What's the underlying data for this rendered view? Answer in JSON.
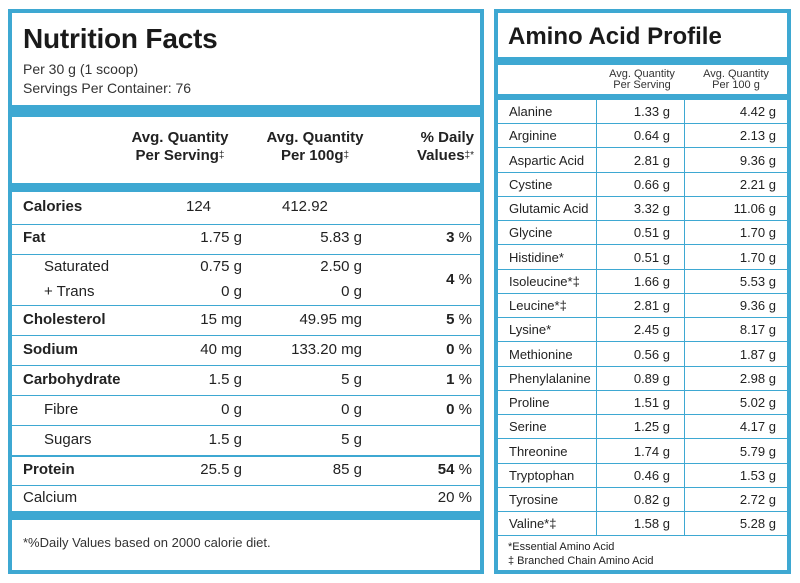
{
  "nutrition": {
    "title": "Nutrition Facts",
    "per_line": "Per 30 g (1 scoop)",
    "servings_line": "Servings Per Container: 76",
    "headers": {
      "per_serving_l1": "Avg. Quantity",
      "per_serving_l2": "Per Serving",
      "per_serving_sym": "‡",
      "per_100g_l1": "Avg. Quantity",
      "per_100g_l2": "Per 100g",
      "per_100g_sym": "‡",
      "daily_l1": "% Daily",
      "daily_l2": "Values",
      "daily_sym": "‡*"
    },
    "rows": [
      {
        "label": "Calories",
        "serving": "124",
        "per100": "412.92",
        "dv": "",
        "dv_unit": ""
      },
      {
        "label": "Fat",
        "serving": "1.75 g",
        "per100": "5.83 g",
        "dv": "3",
        "dv_unit": " %"
      },
      {
        "label": "Saturated",
        "serving": "0.75 g",
        "per100": "2.50 g",
        "dv": "4",
        "dv_unit": " %"
      },
      {
        "label": "+ Trans",
        "serving": "0 g",
        "per100": "0 g",
        "dv": "",
        "dv_unit": ""
      },
      {
        "label": "Cholesterol",
        "serving": "15 mg",
        "per100": "49.95 mg",
        "dv": "5",
        "dv_unit": " %"
      },
      {
        "label": "Sodium",
        "serving": "40 mg",
        "per100": "133.20 mg",
        "dv": "0",
        "dv_unit": " %"
      },
      {
        "label": "Carbohydrate",
        "serving": "1.5 g",
        "per100": "5 g",
        "dv": "1",
        "dv_unit": " %"
      },
      {
        "label": "Fibre",
        "serving": "0 g",
        "per100": "0 g",
        "dv": "0",
        "dv_unit": " %"
      },
      {
        "label": "Sugars",
        "serving": "1.5 g",
        "per100": "5 g",
        "dv": "",
        "dv_unit": ""
      },
      {
        "label": "Protein",
        "serving": "25.5 g",
        "per100": "85 g",
        "dv": "54",
        "dv_unit": " %"
      },
      {
        "label": "Calcium",
        "serving": "",
        "per100": "",
        "dv": "",
        "dv_unit": "20 %"
      }
    ],
    "footnote": "*%Daily Values based on 2000 calorie diet."
  },
  "amino": {
    "title": "Amino Acid Profile",
    "head_serving_l1": "Avg. Quantity",
    "head_serving_l2": "Per Serving",
    "head_100_l1": "Avg. Quantity",
    "head_100_l2": "Per 100 g",
    "rows": [
      {
        "name": "Alanine",
        "serving": "1.33 g",
        "per100": "4.42 g"
      },
      {
        "name": "Arginine",
        "serving": "0.64 g",
        "per100": "2.13 g"
      },
      {
        "name": "Aspartic Acid",
        "serving": "2.81 g",
        "per100": "9.36 g"
      },
      {
        "name": "Cystine",
        "serving": "0.66 g",
        "per100": "2.21 g"
      },
      {
        "name": "Glutamic Acid",
        "serving": "3.32 g",
        "per100": "11.06 g"
      },
      {
        "name": "Glycine",
        "serving": "0.51 g",
        "per100": "1.70 g"
      },
      {
        "name": "Histidine*",
        "serving": "0.51 g",
        "per100": "1.70 g"
      },
      {
        "name": "Isoleucine*‡",
        "serving": "1.66 g",
        "per100": "5.53 g"
      },
      {
        "name": "Leucine*‡",
        "serving": "2.81 g",
        "per100": "9.36 g"
      },
      {
        "name": "Lysine*",
        "serving": "2.45 g",
        "per100": "8.17 g"
      },
      {
        "name": "Methionine",
        "serving": "0.56 g",
        "per100": "1.87 g"
      },
      {
        "name": "Phenylalanine",
        "serving": "0.89 g",
        "per100": "2.98 g"
      },
      {
        "name": "Proline",
        "serving": "1.51 g",
        "per100": "5.02 g"
      },
      {
        "name": "Serine",
        "serving": "1.25 g",
        "per100": "4.17 g"
      },
      {
        "name": "Threonine",
        "serving": "1.74 g",
        "per100": "5.79 g"
      },
      {
        "name": "Tryptophan",
        "serving": "0.46 g",
        "per100": "1.53 g"
      },
      {
        "name": "Tyrosine",
        "serving": "0.82 g",
        "per100": "2.72 g"
      },
      {
        "name": "Valine*‡",
        "serving": "1.58 g",
        "per100": "5.28 g"
      }
    ],
    "footnote1": "*Essential Amino Acid",
    "footnote2": "‡ Branched Chain Amino Acid"
  },
  "colors": {
    "accent": "#3ea8d2",
    "text": "#1a1a1a"
  }
}
